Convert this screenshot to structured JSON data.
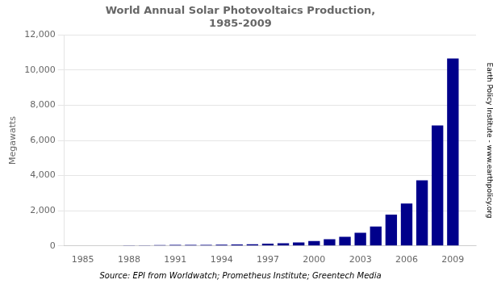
{
  "chart_data": {
    "type": "bar",
    "title": "World Annual Solar Photovoltaics Production,\n1985-2009",
    "ylabel": "Megawatts",
    "annotations": [
      "Source: EPI from Worldwatch; Prometheus Institute; Greentech Media",
      "Earth Policy Institute - www.earthpolicy.org"
    ],
    "x": [
      1985,
      1986,
      1987,
      1988,
      1989,
      1990,
      1991,
      1992,
      1993,
      1994,
      1995,
      1996,
      1997,
      1998,
      1999,
      2000,
      2001,
      2002,
      2003,
      2004,
      2005,
      2006,
      2007,
      2008,
      2009
    ],
    "values": [
      21,
      26,
      29,
      34,
      40,
      46,
      55,
      57,
      60,
      69,
      78,
      89,
      126,
      155,
      201,
      277,
      386,
      520,
      744,
      1100,
      1782,
      2409,
      3733,
      6850,
      10660
    ],
    "color": "#00008B",
    "xlim": [
      1983.8,
      2010.5
    ],
    "xticks": [
      1985,
      1988,
      1991,
      1994,
      1997,
      2000,
      2003,
      2006,
      2009
    ],
    "ylim": [
      0,
      12000
    ],
    "yticks": [
      0,
      {
        "value": 2000,
        "label": "2,000"
      },
      {
        "value": 4000,
        "label": "4,000"
      },
      {
        "value": 6000,
        "label": "6,000"
      },
      {
        "value": 8000,
        "label": "8,000"
      },
      {
        "value": 10000,
        "label": "10,000"
      },
      {
        "value": 12000,
        "label": "12,000"
      }
    ],
    "grid": "y"
  }
}
